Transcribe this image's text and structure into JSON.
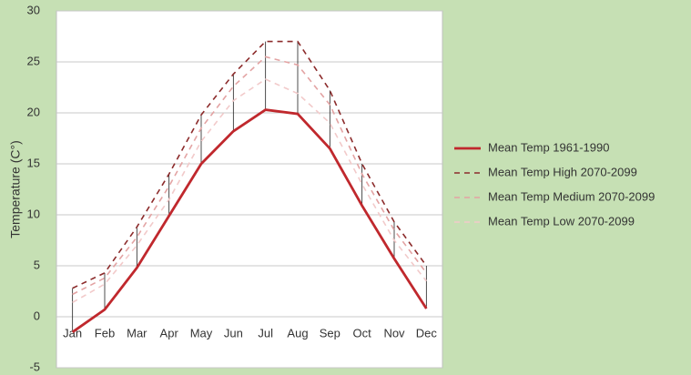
{
  "chart_data": {
    "type": "line",
    "y_label": "Temperature (C°)",
    "categories": [
      "Jan",
      "Feb",
      "Mar",
      "Apr",
      "May",
      "Jun",
      "Jul",
      "Aug",
      "Sep",
      "Oct",
      "Nov",
      "Dec"
    ],
    "series": [
      {
        "name": "Mean Temp 1961-1990",
        "color": "#c0282d",
        "dash": "solid",
        "values": [
          -1.5,
          0.7,
          4.8,
          9.9,
          15,
          18.2,
          20.3,
          19.9,
          16.5,
          10.9,
          5.7,
          0.8
        ]
      },
      {
        "name": "Mean Temp High 2070-2099",
        "color": "#8c2b2b",
        "dash": "dashed",
        "values": [
          2.8,
          4.3,
          8.8,
          14,
          19.8,
          23.8,
          27,
          27,
          22.2,
          15,
          9.3,
          5
        ]
      },
      {
        "name": "Mean Temp Medium 2070-2099",
        "color": "#e3a3a3",
        "dash": "dashed",
        "values": [
          2.2,
          3.8,
          7.8,
          12.8,
          18.5,
          22.6,
          25.5,
          24.7,
          20.8,
          14,
          8.5,
          4.3
        ]
      },
      {
        "name": "Mean Temp Low 2070-2099",
        "color": "#f2caca",
        "dash": "dashed",
        "values": [
          1.4,
          3.2,
          7,
          11.5,
          17.2,
          21.2,
          23.3,
          21.9,
          19,
          13,
          7.5,
          3.5
        ]
      }
    ],
    "ylim": [
      -5,
      30
    ],
    "yticks": [
      -5,
      0,
      5,
      10,
      15,
      20,
      25,
      30
    ],
    "grid": true,
    "legend": "right"
  }
}
